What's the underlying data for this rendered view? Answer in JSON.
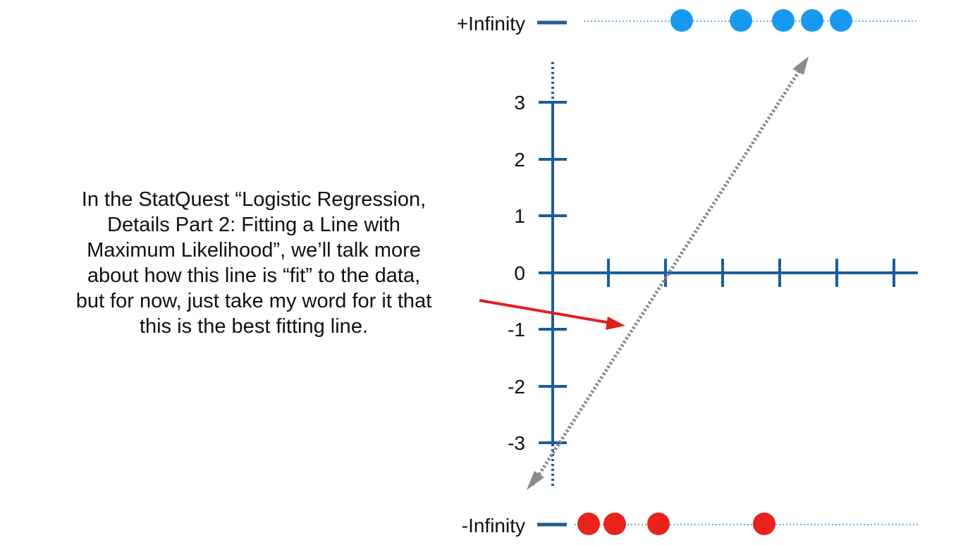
{
  "labels": {
    "pos_infinity": "+Infinity",
    "neg_infinity": "-Infinity"
  },
  "explanation": "In the StatQuest “Logistic Regression,\nDetails Part 2: Fitting a Line with\nMaximum Likelihood”, we’ll talk more\nabout how this line is “fit” to the data,\nbut for now, just take my word for it that\nthis is the best fitting line.",
  "y_ticks": [
    "3",
    "2",
    "1",
    "0",
    "-1",
    "-2",
    "-3"
  ],
  "top_points_count": 5,
  "bottom_points_count": 4,
  "colors": {
    "axis": "#1a5e99",
    "top_points": "#1799f0",
    "bottom_points": "#e8231c",
    "fit_line": "#8a8a8a",
    "arrow": "#e02020",
    "guide": "#6aaee0"
  }
}
